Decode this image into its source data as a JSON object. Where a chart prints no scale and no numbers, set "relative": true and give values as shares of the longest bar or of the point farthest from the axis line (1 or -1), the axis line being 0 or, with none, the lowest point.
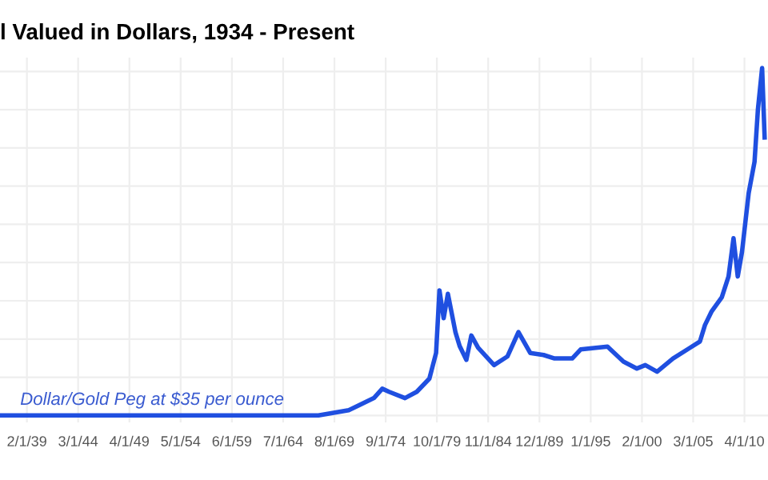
{
  "chart_data": {
    "type": "line",
    "title": "l Valued in Dollars, 1934 - Present",
    "relative": true,
    "x": [
      "1936-06",
      "1968-01",
      "1971-01",
      "1973-07",
      "1974-05",
      "1975-01",
      "1976-08",
      "1977-10",
      "1979-01",
      "1979-09",
      "1980-01",
      "1980-06",
      "1980-11",
      "1981-08",
      "1982-01",
      "1982-09",
      "1983-03",
      "1983-11",
      "1985-06",
      "1986-10",
      "1987-11",
      "1989-01",
      "1990-05",
      "1991-06",
      "1993-03",
      "1994-01",
      "1996-09",
      "1998-04",
      "1999-08",
      "2000-06",
      "2001-08",
      "2003-03",
      "2004-10",
      "2005-11",
      "2006-05",
      "2007-01",
      "2008-01",
      "2008-09",
      "2009-03",
      "2009-08",
      "2010-01",
      "2010-09",
      "2011-04",
      "2011-08",
      "2012-01",
      "2012-04"
    ],
    "series": [
      {
        "color": "#1f4fe0",
        "values": [
          0,
          0,
          0.015,
          0.05,
          0.077,
          0.068,
          0.05,
          0.068,
          0.106,
          0.18,
          0.36,
          0.28,
          0.35,
          0.24,
          0.2,
          0.16,
          0.23,
          0.195,
          0.145,
          0.17,
          0.24,
          0.18,
          0.174,
          0.164,
          0.164,
          0.19,
          0.198,
          0.155,
          0.135,
          0.145,
          0.126,
          0.164,
          0.193,
          0.213,
          0.26,
          0.3,
          0.34,
          0.4,
          0.51,
          0.4,
          0.47,
          0.64,
          0.73,
          0.88,
          1,
          0.8
        ]
      }
    ],
    "xlim": [
      "1936-06",
      "2012-08"
    ],
    "xticks": [
      {
        "value": "1939-02-01",
        "label": "2/1/39"
      },
      {
        "value": "1944-03-01",
        "label": "3/1/44"
      },
      {
        "value": "1949-04-01",
        "label": "4/1/49"
      },
      {
        "value": "1954-05-01",
        "label": "5/1/54"
      },
      {
        "value": "1959-06-01",
        "label": "6/1/59"
      },
      {
        "value": "1964-07-01",
        "label": "7/1/64"
      },
      {
        "value": "1969-08-01",
        "label": "8/1/69"
      },
      {
        "value": "1974-09-01",
        "label": "9/1/74"
      },
      {
        "value": "1979-10-01",
        "label": "10/1/79"
      },
      {
        "value": "1984-11-01",
        "label": "11/1/84"
      },
      {
        "value": "1989-12-01",
        "label": "12/1/89"
      },
      {
        "value": "1995-01-01",
        "label": "1/1/95"
      },
      {
        "value": "2000-02-01",
        "label": "2/1/00"
      },
      {
        "value": "2005-03-01",
        "label": "3/1/05"
      },
      {
        "value": "2010-04-01",
        "label": "4/1/10"
      }
    ],
    "annotations": [
      {
        "text": "Dollar/Gold Peg at $35 per ounce",
        "x": "1938-06",
        "y": 0
      }
    ],
    "grid": true,
    "marker": "none",
    "line_style": "solid",
    "legend": false
  }
}
